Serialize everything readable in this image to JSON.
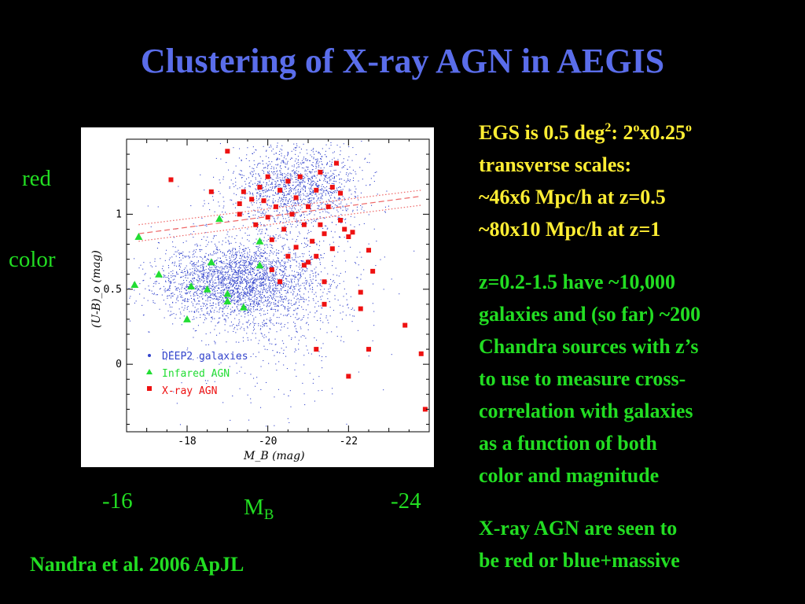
{
  "slide": {
    "title": "Clustering of X-ray AGN in AEGIS",
    "y_label_top": "red",
    "y_label_bottom": "color",
    "x_tick_left": "-16",
    "x_tick_right": "-24",
    "x_label_main": "M",
    "x_label_sub": "B",
    "citation": "Nandra et al. 2006 ApJL"
  },
  "right_text": {
    "egs_line": {
      "a": "EGS is 0.5 deg",
      "sup1": "2",
      "b": ": 2",
      "sup2": "o",
      "c": "x0.25",
      "sup3": "o"
    },
    "scales_lines": [
      "transverse scales:",
      "~46x6 Mpc/h at z=0.5",
      "~80x10 Mpc/h at z=1"
    ],
    "para2_lines": [
      "z=0.2-1.5 have ~10,000",
      "galaxies and (so far) ~200",
      "Chandra sources with z’s",
      "to use to measure cross-",
      "correlation with galaxies",
      "as a function of both",
      "color and magnitude"
    ],
    "para3_lines": [
      "X-ray AGN are seen to",
      "be red or blue+massive"
    ]
  },
  "colors": {
    "title": "#5a6dea",
    "green": "#22dd22",
    "yellow": "#ffee33",
    "galaxies": "#3344cc",
    "infrared": "#22dd33",
    "xray": "#ee1111",
    "fit_line": "#ee6666"
  },
  "chart_data": {
    "type": "scatter",
    "xlabel": "M_B (mag)",
    "ylabel": "(U-B)_o (mag)",
    "xlim": [
      -16.5,
      -24
    ],
    "ylim": [
      -0.45,
      1.5
    ],
    "x_ticks": [
      "-18",
      "-20",
      "-22"
    ],
    "y_ticks": [
      "0",
      "0.5",
      "1"
    ],
    "legend_position": "bottom-left",
    "galaxy_cloud": [
      {
        "count": 2600,
        "x_mean": -19.3,
        "x_sd": 1.0,
        "y_mean": 0.55,
        "y_sd": 0.13
      },
      {
        "count": 1400,
        "x_mean": -20.7,
        "x_sd": 0.8,
        "y_mean": 1.18,
        "y_sd": 0.14
      },
      {
        "count": 700,
        "x_mean": -20.0,
        "x_sd": 1.2,
        "y_mean": 0.45,
        "y_sd": 0.35
      }
    ],
    "fit_lines": [
      {
        "style": "dashed",
        "points": [
          [
            -16.8,
            0.87
          ],
          [
            -23.8,
            1.12
          ]
        ]
      },
      {
        "style": "dotted",
        "points": [
          [
            -16.8,
            0.82
          ],
          [
            -23.8,
            1.06
          ]
        ]
      },
      {
        "style": "dotted",
        "points": [
          [
            -16.8,
            0.93
          ],
          [
            -23.8,
            1.16
          ]
        ]
      }
    ],
    "series": [
      {
        "name": "DEEP2 galaxies",
        "marker": "dot"
      },
      {
        "name": "Infared AGN",
        "marker": "triangle",
        "points": [
          [
            -16.8,
            0.85
          ],
          [
            -16.7,
            0.53
          ],
          [
            -17.3,
            0.6
          ],
          [
            -18.1,
            0.52
          ],
          [
            -18.0,
            0.3
          ],
          [
            -18.5,
            0.5
          ],
          [
            -18.6,
            0.68
          ],
          [
            -18.8,
            0.97
          ],
          [
            -19.0,
            0.47
          ],
          [
            -19.0,
            0.42
          ],
          [
            -19.4,
            0.38
          ],
          [
            -19.8,
            0.82
          ],
          [
            -19.8,
            0.66
          ]
        ]
      },
      {
        "name": "X-ray AGN",
        "marker": "square",
        "points": [
          [
            -17.6,
            1.23
          ],
          [
            -18.6,
            1.15
          ],
          [
            -19.0,
            1.42
          ],
          [
            -19.3,
            1.07
          ],
          [
            -19.4,
            1.15
          ],
          [
            -19.3,
            1.0
          ],
          [
            -19.6,
            1.1
          ],
          [
            -19.7,
            0.93
          ],
          [
            -19.8,
            1.18
          ],
          [
            -19.9,
            1.09
          ],
          [
            -20.0,
            1.25
          ],
          [
            -20.0,
            0.98
          ],
          [
            -20.1,
            0.83
          ],
          [
            -20.1,
            0.63
          ],
          [
            -20.2,
            1.05
          ],
          [
            -20.3,
            1.16
          ],
          [
            -20.4,
            0.9
          ],
          [
            -20.5,
            1.22
          ],
          [
            -20.5,
            0.72
          ],
          [
            -20.6,
            1.0
          ],
          [
            -20.7,
            0.78
          ],
          [
            -20.7,
            1.11
          ],
          [
            -20.8,
            1.25
          ],
          [
            -20.9,
            0.93
          ],
          [
            -20.9,
            0.66
          ],
          [
            -21.0,
            1.05
          ],
          [
            -21.0,
            0.68
          ],
          [
            -21.1,
            0.82
          ],
          [
            -21.2,
            1.16
          ],
          [
            -21.2,
            0.72
          ],
          [
            -21.3,
            1.28
          ],
          [
            -21.3,
            0.93
          ],
          [
            -21.4,
            0.87
          ],
          [
            -21.5,
            1.05
          ],
          [
            -21.6,
            0.77
          ],
          [
            -21.6,
            1.18
          ],
          [
            -21.7,
            1.34
          ],
          [
            -21.8,
            0.96
          ],
          [
            -21.8,
            1.14
          ],
          [
            -21.9,
            0.9
          ],
          [
            -22.0,
            0.85
          ],
          [
            -22.1,
            0.88
          ],
          [
            -20.3,
            0.55
          ],
          [
            -21.4,
            0.55
          ],
          [
            -21.4,
            0.4
          ],
          [
            -21.2,
            0.1
          ],
          [
            -22.5,
            0.76
          ],
          [
            -22.6,
            0.62
          ],
          [
            -22.3,
            0.48
          ],
          [
            -22.3,
            0.37
          ],
          [
            -22.0,
            -0.08
          ],
          [
            -22.5,
            0.1
          ],
          [
            -23.4,
            0.26
          ],
          [
            -23.8,
            0.07
          ],
          [
            -23.9,
            -0.3
          ]
        ]
      }
    ]
  }
}
